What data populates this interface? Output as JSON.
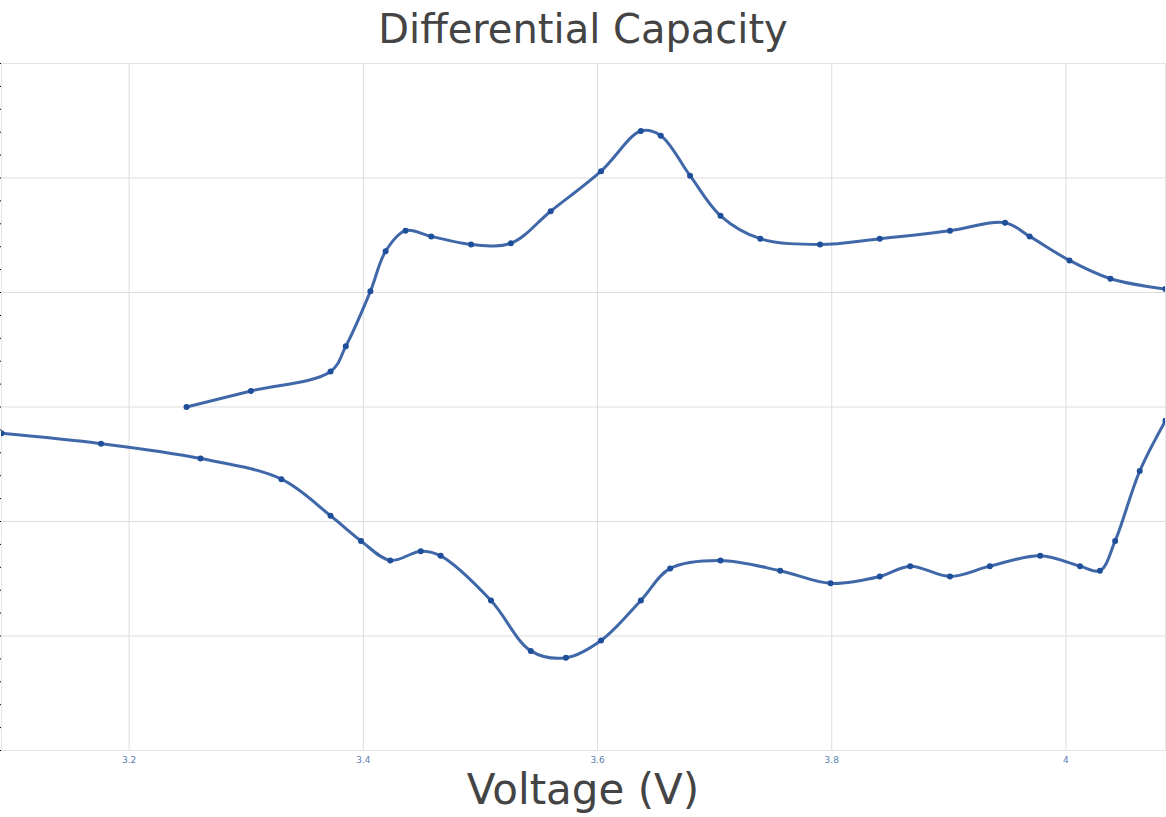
{
  "chart_data": {
    "type": "line",
    "title": "Differential Capacity",
    "x_label": "Voltage (V)",
    "marker": "circle",
    "grid": true,
    "tick_labels": "x",
    "xlim": [
      3.091,
      4.085
    ],
    "xticks": [
      3.2,
      3.4,
      3.6,
      3.8,
      4
    ],
    "ylim": [
      -3,
      3
    ],
    "yticks": [
      -3,
      -2,
      -1,
      0,
      1,
      2,
      3
    ],
    "series": [
      {
        "color": "#1f4e9a",
        "x": [
          3.249,
          3.304,
          3.372,
          3.385,
          3.406,
          3.419,
          3.436,
          3.458,
          3.492,
          3.526,
          3.56,
          3.603,
          3.637,
          3.654,
          3.679,
          3.705,
          3.739,
          3.79,
          3.841,
          3.901,
          3.948,
          3.969,
          4.003,
          4.038,
          4.085
        ],
        "values": [
          0.0,
          0.14,
          0.31,
          0.53,
          1.01,
          1.36,
          1.54,
          1.49,
          1.42,
          1.43,
          1.71,
          2.06,
          2.41,
          2.37,
          2.02,
          1.67,
          1.47,
          1.42,
          1.47,
          1.54,
          1.61,
          1.49,
          1.28,
          1.12,
          1.03
        ]
      },
      {
        "color": "#1f4e9a",
        "x": [
          4.085,
          4.063,
          4.042,
          4.029,
          4.012,
          3.978,
          3.935,
          3.901,
          3.867,
          3.841,
          3.799,
          3.756,
          3.705,
          3.662,
          3.637,
          3.603,
          3.573,
          3.543,
          3.509,
          3.466,
          3.449,
          3.423,
          3.398,
          3.372,
          3.33,
          3.261,
          3.176,
          3.091
        ],
        "values": [
          -0.12,
          -0.56,
          -1.17,
          -1.43,
          -1.39,
          -1.3,
          -1.39,
          -1.48,
          -1.39,
          -1.48,
          -1.54,
          -1.43,
          -1.34,
          -1.41,
          -1.69,
          -2.04,
          -2.19,
          -2.13,
          -1.69,
          -1.3,
          -1.26,
          -1.34,
          -1.17,
          -0.95,
          -0.63,
          -0.45,
          -0.32,
          -0.23
        ]
      }
    ]
  }
}
